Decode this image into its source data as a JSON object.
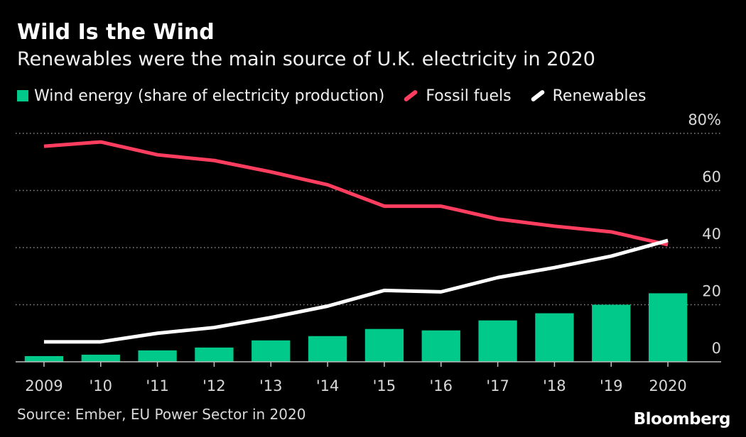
{
  "header": {
    "title": "Wild Is the Wind",
    "subtitle": "Renewables were the main source of U.K. electricity in 2020"
  },
  "legend": {
    "items": [
      {
        "label": "Wind energy (share of electricity production)",
        "color": "#00c98a",
        "kind": "bar"
      },
      {
        "label": "Fossil fuels",
        "color": "#ff3e5f",
        "kind": "line"
      },
      {
        "label": "Renewables",
        "color": "#ffffff",
        "kind": "line"
      }
    ]
  },
  "footer": {
    "source": "Source: Ember, EU Power Sector in 2020",
    "brand": "Bloomberg"
  },
  "chart_data": {
    "type": "bar",
    "title": "Wild Is the Wind",
    "subtitle": "Renewables were the main source of U.K. electricity in 2020",
    "categories": [
      "2009",
      "'10",
      "'11",
      "'12",
      "'13",
      "'14",
      "'15",
      "'16",
      "'17",
      "'18",
      "'19",
      "2020"
    ],
    "series": [
      {
        "name": "Wind energy (share of electricity production)",
        "type": "bar",
        "color": "#00c98a",
        "values": [
          2,
          2.5,
          4,
          5,
          7.5,
          9,
          11.5,
          11,
          14.5,
          17,
          20,
          24
        ]
      },
      {
        "name": "Fossil fuels",
        "type": "line",
        "color": "#ff3e5f",
        "values": [
          75.5,
          77,
          72.5,
          70.5,
          66.5,
          62,
          54.5,
          54.5,
          50,
          47.5,
          45.5,
          41
        ]
      },
      {
        "name": "Renewables",
        "type": "line",
        "color": "#ffffff",
        "values": [
          7,
          7,
          10,
          12,
          15.5,
          19.5,
          25,
          24.5,
          29.5,
          33,
          37,
          42.5
        ]
      }
    ],
    "y_ticks": [
      "0",
      "20",
      "40",
      "60",
      "80%"
    ],
    "y_tick_values": [
      0,
      20,
      40,
      60,
      80
    ],
    "ylim": [
      0,
      80
    ],
    "xlabel": "",
    "ylabel": "",
    "grid": true,
    "legend_position": "top-left"
  }
}
